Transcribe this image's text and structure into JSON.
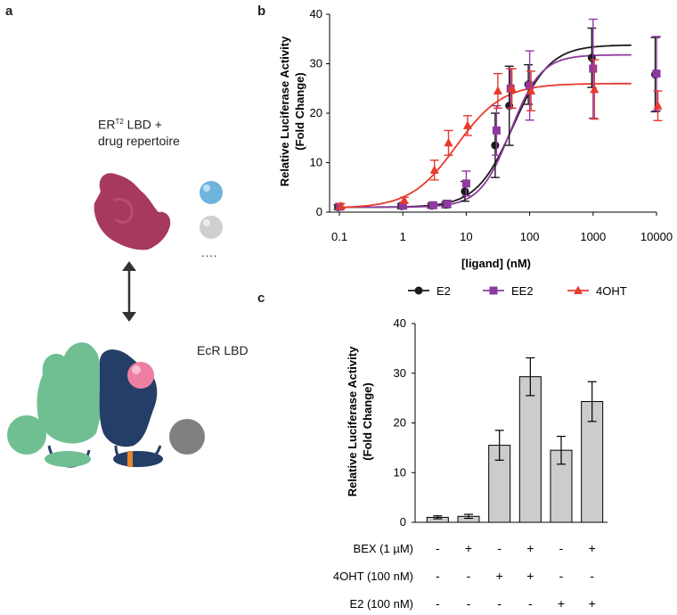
{
  "panels": {
    "a": {
      "letter": "a",
      "er_label_pre": "ER",
      "er_label_sup": "T2",
      "er_label_post": " LBD +",
      "er_label_line2": "drug repertoire",
      "ecr_label": "EcR LBD",
      "ellipsis": "....",
      "colors": {
        "er_blob": "#a73a5c",
        "ligand_blue": "#6fb4dd",
        "ligand_gray": "#cfcfcf",
        "green": "#6fbf93",
        "navy": "#253e67",
        "pink": "#ee7fa3",
        "orange": "#e6882b",
        "gray_domain": "#808080"
      }
    },
    "b": {
      "letter": "b"
    },
    "c": {
      "letter": "c"
    }
  },
  "chart_data": [
    {
      "type": "line",
      "panel": "b",
      "xlabel": "[ligand] (nM)",
      "ylabel_line1": "Relative Luciferase Activity",
      "ylabel_line2": "(Fold Change)",
      "xscale": "log",
      "xlim": [
        0.07,
        10000
      ],
      "ylim": [
        0,
        40
      ],
      "x_ticks": [
        0.1,
        1,
        10,
        100,
        1000,
        10000
      ],
      "x_tick_labels": [
        "0.1",
        "1",
        "10",
        "100",
        "1000",
        "10000"
      ],
      "y_ticks": [
        0,
        10,
        20,
        30,
        40
      ],
      "y_tick_labels": [
        "0",
        "10",
        "20",
        "30",
        "40"
      ],
      "legend_position": "bottom",
      "series": [
        {
          "name": "E2",
          "color": "#1a1a1a",
          "marker": "circle",
          "points": [
            {
              "x": 0.1,
              "y": 1.0,
              "err": 0.5
            },
            {
              "x": 1,
              "y": 1.2,
              "err": 0.5
            },
            {
              "x": 3,
              "y": 1.3,
              "err": 0.5
            },
            {
              "x": 5,
              "y": 1.5,
              "err": 0.6
            },
            {
              "x": 10,
              "y": 4.2,
              "err": 2.0
            },
            {
              "x": 30,
              "y": 13.5,
              "err": 6.5
            },
            {
              "x": 50,
              "y": 21.5,
              "err": 8.0
            },
            {
              "x": 100,
              "y": 25.8,
              "err": 4.0
            },
            {
              "x": 1000,
              "y": 31.2,
              "err": 6.0
            },
            {
              "x": 10000,
              "y": 27.8,
              "err": 7.5
            }
          ],
          "fit": {
            "bottom": 1.0,
            "top": 33.8,
            "ec50": 55,
            "hill": 1.5,
            "xmax": 4000
          }
        },
        {
          "name": "EE2",
          "color": "#8e3aa0",
          "marker": "square",
          "points": [
            {
              "x": 0.1,
              "y": 1.1,
              "err": 0.6
            },
            {
              "x": 1,
              "y": 1.3,
              "err": 0.6
            },
            {
              "x": 3,
              "y": 1.4,
              "err": 0.6
            },
            {
              "x": 5,
              "y": 1.7,
              "err": 0.7
            },
            {
              "x": 10,
              "y": 5.8,
              "err": 2.5
            },
            {
              "x": 30,
              "y": 16.5,
              "err": 5.0
            },
            {
              "x": 50,
              "y": 25.0,
              "err": 4.0
            },
            {
              "x": 100,
              "y": 25.6,
              "err": 7.0
            },
            {
              "x": 1000,
              "y": 29.0,
              "err": 10.0
            },
            {
              "x": 10000,
              "y": 28.0,
              "err": 7.5
            }
          ],
          "fit": {
            "bottom": 1.0,
            "top": 31.8,
            "ec50": 50,
            "hill": 1.8,
            "xmax": 4000
          }
        },
        {
          "name": "4OHT",
          "color": "#e8392d",
          "marker": "triangle",
          "points": [
            {
              "x": 0.1,
              "y": 1.2,
              "err": 0.5
            },
            {
              "x": 1,
              "y": 2.4,
              "err": 0.6
            },
            {
              "x": 3,
              "y": 8.5,
              "err": 2.0
            },
            {
              "x": 5,
              "y": 14.0,
              "err": 2.5
            },
            {
              "x": 10,
              "y": 17.5,
              "err": 2.0
            },
            {
              "x": 30,
              "y": 24.5,
              "err": 3.5
            },
            {
              "x": 50,
              "y": 25.0,
              "err": 4.0
            },
            {
              "x": 100,
              "y": 24.5,
              "err": 4.0
            },
            {
              "x": 1000,
              "y": 24.8,
              "err": 6.0
            },
            {
              "x": 10000,
              "y": 21.5,
              "err": 3.0
            }
          ],
          "fit": {
            "bottom": 0.8,
            "top": 26.0,
            "ec50": 7,
            "hill": 1.2,
            "xmax": 4000
          }
        }
      ]
    },
    {
      "type": "bar",
      "panel": "c",
      "ylabel_line1": "Relative Luciferase Activity",
      "ylabel_line2": "(Fold Change)",
      "ylim": [
        0,
        40
      ],
      "y_ticks": [
        0,
        10,
        20,
        30,
        40
      ],
      "y_tick_labels": [
        "0",
        "10",
        "20",
        "30",
        "40"
      ],
      "bar_color": "#cccccc",
      "values": [
        1.0,
        1.2,
        15.5,
        29.3,
        14.5,
        24.3
      ],
      "errors": [
        0.3,
        0.4,
        3.0,
        3.8,
        2.8,
        4.0
      ],
      "conditions": [
        {
          "label": "BEX (1 µM)",
          "signs": [
            "-",
            "+",
            "-",
            "+",
            "-",
            "+"
          ]
        },
        {
          "label": "4OHT (100 nM)",
          "signs": [
            "-",
            "-",
            "+",
            "+",
            "-",
            "-"
          ]
        },
        {
          "label": "E2 (100 nM)",
          "signs": [
            "-",
            "-",
            "-",
            "-",
            "+",
            "+"
          ]
        }
      ]
    }
  ]
}
